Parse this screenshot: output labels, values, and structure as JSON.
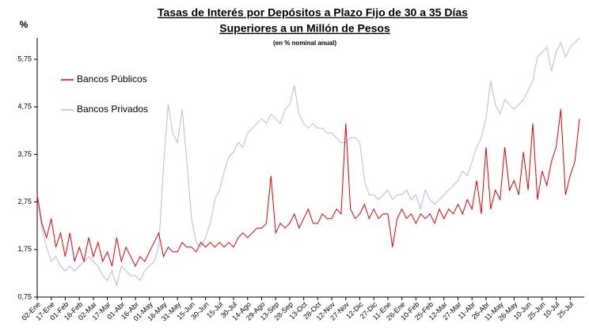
{
  "chart_data": {
    "type": "line",
    "title": [
      "Tasas de Interés por Depósitos a Plazo Fijo de 30 a 35 Días",
      "Superiores a un Millón de Pesos"
    ],
    "subtitle": "(en % nominal anual)",
    "y_label": "%",
    "categories": [
      "02-Ene",
      null,
      null,
      "17-Ene",
      null,
      null,
      "01-Feb",
      null,
      null,
      "16-Feb",
      null,
      null,
      "02-Mar",
      null,
      null,
      "17-Mar",
      null,
      null,
      "01-Abr",
      null,
      null,
      "16-Abr",
      null,
      null,
      "01-May",
      null,
      null,
      "16-May",
      null,
      null,
      "31-May",
      null,
      null,
      "15-Jun",
      null,
      null,
      "30-Jun",
      null,
      null,
      "15-Jul",
      null,
      null,
      "30-Jul",
      null,
      null,
      "14-Ago",
      null,
      null,
      "29-Ago",
      null,
      null,
      "13-Sep",
      null,
      null,
      "28-Sep",
      null,
      null,
      "13-Oct",
      null,
      null,
      "28-Oct",
      null,
      null,
      "12-Nov",
      null,
      null,
      "27-Nov",
      null,
      null,
      "12-Dic",
      null,
      null,
      "27-Dic",
      null,
      null,
      "11-Ene",
      null,
      null,
      "26-Ene",
      null,
      null,
      "10-Feb",
      null,
      null,
      "25-Feb",
      null,
      null,
      "12-Mar",
      null,
      null,
      "27-Mar",
      null,
      null,
      "11-Abr",
      null,
      null,
      "26-Abr",
      null,
      null,
      "11-May",
      null,
      null,
      "26-May",
      null,
      null,
      "10-Jun",
      null,
      null,
      "25-Jun",
      null,
      null,
      "10-Jul",
      null,
      null,
      "25-Jul",
      null,
      null
    ],
    "series": [
      {
        "name": "Bancos Públicos",
        "color": "#e00000",
        "values": [
          2.9,
          2.3,
          2.0,
          2.4,
          1.8,
          2.1,
          1.6,
          2.1,
          1.5,
          1.8,
          1.5,
          2.0,
          1.6,
          1.9,
          1.5,
          1.7,
          1.4,
          2.0,
          1.5,
          1.8,
          1.6,
          1.4,
          1.6,
          1.5,
          1.7,
          1.9,
          2.1,
          1.6,
          1.8,
          1.7,
          1.7,
          1.9,
          1.8,
          1.8,
          1.7,
          1.9,
          1.8,
          1.9,
          1.8,
          1.9,
          1.8,
          1.9,
          1.8,
          2.0,
          2.1,
          2.0,
          2.1,
          2.2,
          2.2,
          2.3,
          3.3,
          2.1,
          2.3,
          2.2,
          2.3,
          2.5,
          2.2,
          2.4,
          2.6,
          2.3,
          2.3,
          2.5,
          2.4,
          2.4,
          2.6,
          2.5,
          4.4,
          2.6,
          2.4,
          2.5,
          2.7,
          2.4,
          2.6,
          2.4,
          2.5,
          2.5,
          1.8,
          2.4,
          2.6,
          2.4,
          2.5,
          2.3,
          2.5,
          2.4,
          2.5,
          2.3,
          2.6,
          2.4,
          2.6,
          2.5,
          2.7,
          2.5,
          2.8,
          2.6,
          3.2,
          2.5,
          3.9,
          2.6,
          3.0,
          2.8,
          3.9,
          3.0,
          3.2,
          2.9,
          3.8,
          3.0,
          4.4,
          2.8,
          3.4,
          3.1,
          3.6,
          3.9,
          4.7,
          2.9,
          3.3,
          3.6,
          4.5
        ]
      },
      {
        "name": "Bancos Privados",
        "color": "#b8b8f0",
        "values": [
          2.9,
          2.2,
          1.8,
          1.5,
          1.6,
          1.4,
          1.3,
          1.4,
          1.3,
          1.4,
          1.5,
          1.6,
          1.5,
          1.4,
          1.2,
          1.1,
          1.3,
          1.0,
          1.4,
          1.3,
          1.2,
          1.2,
          1.1,
          1.3,
          1.4,
          1.5,
          1.8,
          3.5,
          4.8,
          4.2,
          4.0,
          4.7,
          3.6,
          2.4,
          1.9,
          1.8,
          2.0,
          2.3,
          2.8,
          3.0,
          3.4,
          3.7,
          3.8,
          4.0,
          3.9,
          4.2,
          4.3,
          4.4,
          4.5,
          4.4,
          4.6,
          4.5,
          4.4,
          4.7,
          4.8,
          5.2,
          4.6,
          4.4,
          4.3,
          4.4,
          4.3,
          4.3,
          4.2,
          4.2,
          4.1,
          4.0,
          4.0,
          4.1,
          4.1,
          4.0,
          3.2,
          2.9,
          2.9,
          2.8,
          2.9,
          3.0,
          2.8,
          2.9,
          2.9,
          3.0,
          2.8,
          2.9,
          2.6,
          3.0,
          2.8,
          2.7,
          2.8,
          2.9,
          3.0,
          3.1,
          3.2,
          3.4,
          3.3,
          3.6,
          3.9,
          4.1,
          4.5,
          5.3,
          4.8,
          4.6,
          4.9,
          4.8,
          4.7,
          4.8,
          4.9,
          5.1,
          5.3,
          5.8,
          5.9,
          6.0,
          5.5,
          5.9,
          6.1,
          5.8,
          6.0,
          6.1,
          6.2
        ]
      }
    ],
    "ylim": [
      0.75,
      6.2
    ],
    "yticks": [
      {
        "value": 0.75,
        "label": "0,75"
      },
      {
        "value": 1.75,
        "label": "1,75"
      },
      {
        "value": 2.75,
        "label": "2,75"
      },
      {
        "value": 3.75,
        "label": "3,75"
      },
      {
        "value": 4.75,
        "label": "4,75"
      },
      {
        "value": 5.75,
        "label": "5,75"
      }
    ],
    "legend": "upper left",
    "grid": false
  }
}
